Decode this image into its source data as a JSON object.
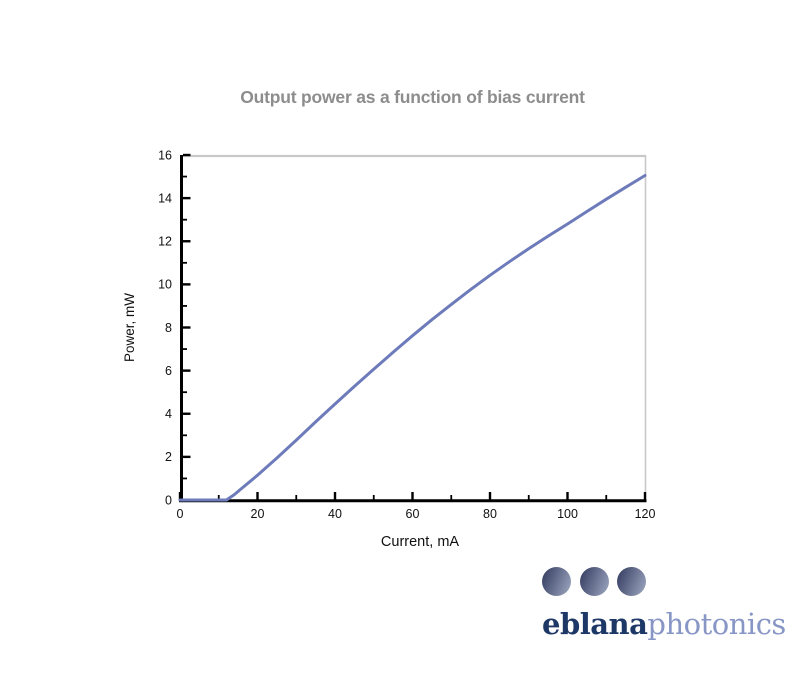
{
  "colors": {
    "background": "#ffffff",
    "title_gray": "#8d8d8d",
    "axis_black": "#000000",
    "plot_border_gray": "#c9c9c9",
    "line_blue": "#6e7bbb",
    "logo_navy": "#1d3866",
    "logo_periwinkle": "#8896c6",
    "logo_dot_dark": "#3a4266",
    "logo_dot_light": "#97a0ba"
  },
  "chart_data": {
    "type": "line",
    "title": "Output power as a function of bias current",
    "xlabel": "Current, mA",
    "ylabel": "Power, mW",
    "xlim": [
      0,
      120
    ],
    "ylim": [
      0,
      16
    ],
    "x_ticks": [
      0,
      20,
      40,
      60,
      80,
      100,
      120
    ],
    "x_minor_ticks": [
      10,
      30,
      50,
      70,
      90,
      110
    ],
    "y_ticks": [
      0,
      2,
      4,
      6,
      8,
      10,
      12,
      14,
      16
    ],
    "y_minor_ticks": [
      1,
      3,
      5,
      7,
      9,
      11,
      13,
      15
    ],
    "grid": false,
    "legend": "none",
    "series": [
      {
        "name": "Output power",
        "color": "#6e7bbb",
        "points": [
          [
            0,
            0
          ],
          [
            5,
            0
          ],
          [
            10,
            0
          ],
          [
            12,
            0
          ],
          [
            14,
            0.25
          ],
          [
            16,
            0.55
          ],
          [
            18,
            0.85
          ],
          [
            20,
            1.15
          ],
          [
            25,
            1.95
          ],
          [
            30,
            2.78
          ],
          [
            35,
            3.62
          ],
          [
            40,
            4.45
          ],
          [
            45,
            5.27
          ],
          [
            50,
            6.07
          ],
          [
            55,
            6.85
          ],
          [
            60,
            7.62
          ],
          [
            65,
            8.36
          ],
          [
            70,
            9.07
          ],
          [
            75,
            9.76
          ],
          [
            80,
            10.42
          ],
          [
            85,
            11.05
          ],
          [
            90,
            11.66
          ],
          [
            95,
            12.24
          ],
          [
            100,
            12.8
          ],
          [
            105,
            13.38
          ],
          [
            110,
            13.95
          ],
          [
            115,
            14.5
          ],
          [
            120,
            15.05
          ]
        ]
      }
    ]
  },
  "logo": {
    "name_bold": "eblana",
    "name_light": "photonics",
    "dot_count": 3
  }
}
